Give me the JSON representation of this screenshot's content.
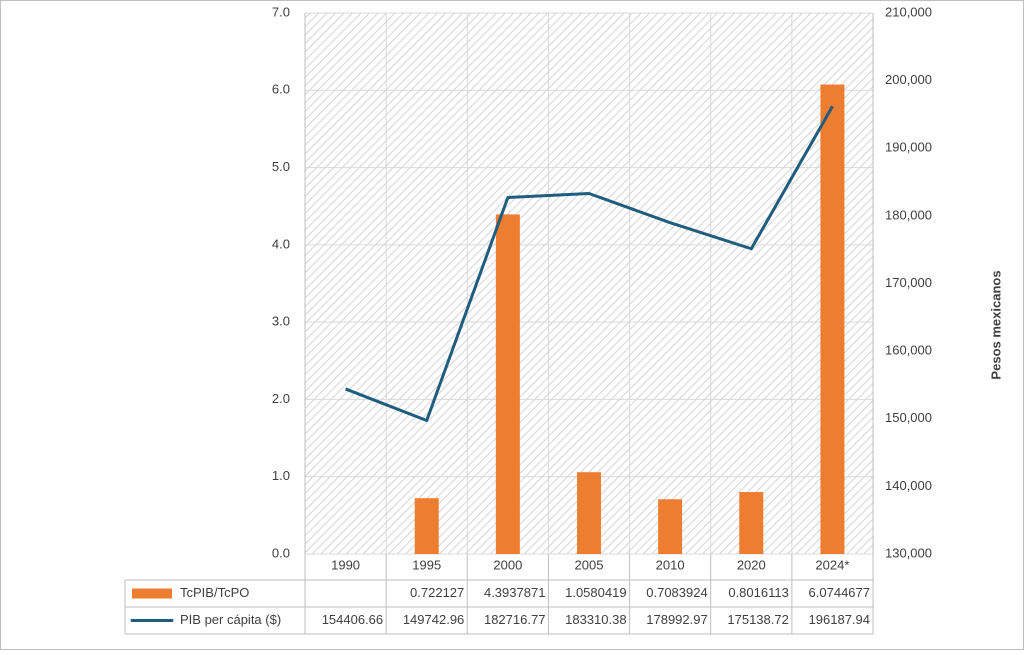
{
  "chart_data": {
    "type": "bar",
    "categories": [
      "1990",
      "1995",
      "2000",
      "2005",
      "2010",
      "2020",
      "2024*"
    ],
    "series": [
      {
        "name": "TcPIB/TcPO",
        "type": "bar",
        "color": "#ed7d31",
        "axis": "y",
        "values": [
          null,
          0.722127,
          4.3937871,
          1.0580419,
          0.7083924,
          0.8016113,
          6.0744677
        ]
      },
      {
        "name": "PIB per cápita ($)",
        "type": "line",
        "color": "#1f5c7e",
        "axis": "y2",
        "values": [
          154406.66,
          149742.96,
          182716.77,
          183310.38,
          178992.97,
          175138.72,
          196187.94
        ]
      }
    ],
    "ylim": [
      0,
      7
    ],
    "yticks": [
      {
        "value": 0,
        "label": "0.0"
      },
      {
        "value": 1,
        "label": "1.0"
      },
      {
        "value": 2,
        "label": "2.0"
      },
      {
        "value": 3,
        "label": "3.0"
      },
      {
        "value": 4,
        "label": "4.0"
      },
      {
        "value": 5,
        "label": "5.0"
      },
      {
        "value": 6,
        "label": "6.0"
      },
      {
        "value": 7,
        "label": "7.0"
      }
    ],
    "y2lim": [
      130000,
      210000
    ],
    "y2ticks": [
      {
        "value": 130000,
        "label": "130,000"
      },
      {
        "value": 140000,
        "label": "140,000"
      },
      {
        "value": 150000,
        "label": "150,000"
      },
      {
        "value": 160000,
        "label": "160,000"
      },
      {
        "value": 170000,
        "label": "170,000"
      },
      {
        "value": 180000,
        "label": "180,000"
      },
      {
        "value": 190000,
        "label": "190,000"
      },
      {
        "value": 200000,
        "label": "200,000"
      },
      {
        "value": 210000,
        "label": "210,000"
      }
    ],
    "y2label": "Pesos mexicanos",
    "grid": true,
    "data_table": true
  }
}
